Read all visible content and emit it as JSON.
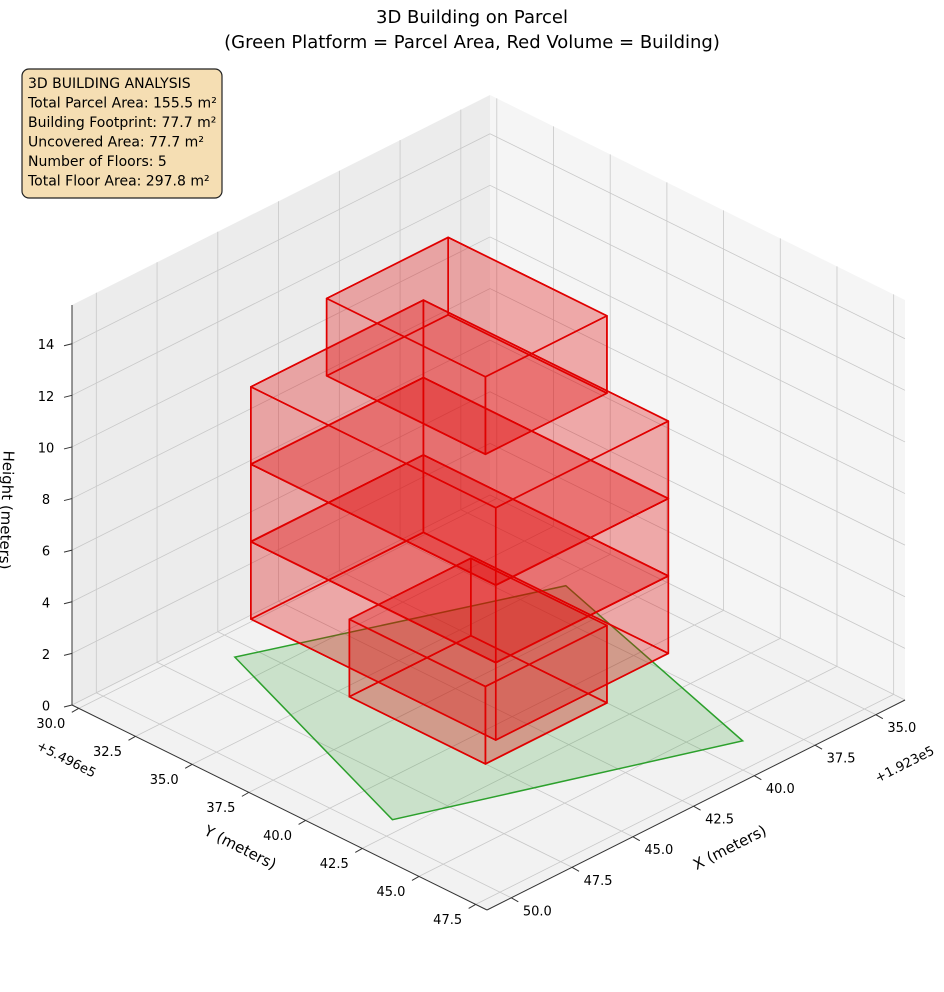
{
  "chart_data": {
    "type": "bar3d",
    "title": "3D Building on Parcel",
    "subtitle": "(Green Platform = Parcel Area, Red Volume = Building)",
    "info_box": [
      "3D BUILDING ANALYSIS",
      "Total Parcel Area: 155.5 m²",
      "Building Footprint: 77.7 m²",
      "Uncovered Area: 77.7 m²",
      "Number of Floors: 5",
      "Total Floor Area: 297.8 m²"
    ],
    "xlabel": "X (meters)",
    "ylabel": "Y (meters)",
    "zlabel": "Height (meters)",
    "x_offset": "+1.923e5",
    "y_offset": "+5.496e5",
    "xlim": [
      33.8,
      51
    ],
    "ylim": [
      29.7,
      48
    ],
    "zlim": [
      0,
      15.5
    ],
    "xticks": [
      {
        "value": 35,
        "label": "35.0"
      },
      37.5,
      {
        "value": 40,
        "label": "40.0"
      },
      42.5,
      {
        "value": 45,
        "label": "45.0"
      },
      47.5,
      {
        "value": 50,
        "label": "50.0"
      }
    ],
    "yticks": [
      {
        "value": 30,
        "label": "30.0"
      },
      32.5,
      {
        "value": 35,
        "label": "35.0"
      },
      37.5,
      {
        "value": 40,
        "label": "40.0"
      },
      42.5,
      {
        "value": 45,
        "label": "45.0"
      },
      47.5
    ],
    "zticks": [
      0,
      2,
      4,
      6,
      8,
      10,
      12,
      14
    ],
    "grid": true,
    "parcel": {
      "color": "#2ca02c",
      "x": [
        45.7,
        36,
        38.8,
        49.2
      ],
      "y": [
        31.2,
        35.4,
        46.2,
        41.9
      ]
    },
    "building_color": "#e00000",
    "buildings": [
      {
        "x": [
          40,
          45
        ],
        "y": [
          35.5,
          41.5
        ],
        "z": [
          0,
          3
        ]
      },
      {
        "x": [
          39.9,
          47
        ],
        "y": [
          33.3,
          44.1
        ],
        "z": [
          3,
          6
        ]
      },
      {
        "x": [
          39.9,
          47
        ],
        "y": [
          33.3,
          44.1
        ],
        "z": [
          6,
          9
        ]
      },
      {
        "x": [
          39.9,
          47
        ],
        "y": [
          33.3,
          44.1
        ],
        "z": [
          9,
          12
        ]
      },
      {
        "x": [
          40,
          45
        ],
        "y": [
          34.5,
          41.5
        ],
        "z": [
          12,
          15
        ]
      }
    ]
  }
}
